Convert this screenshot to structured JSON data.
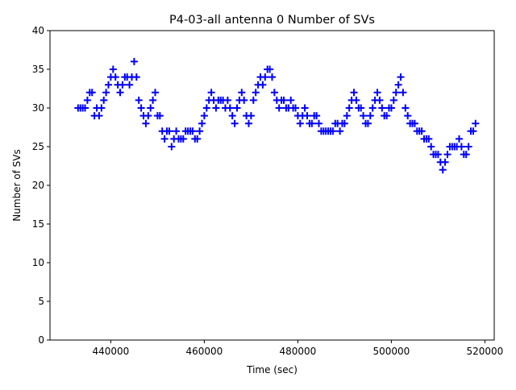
{
  "chart_data": {
    "type": "scatter",
    "title": "P4-03-all antenna 0 Number of SVs",
    "xlabel": "Time (sec)",
    "ylabel": "Number of SVs",
    "xlim": [
      427000,
      522000
    ],
    "ylim": [
      0,
      40
    ],
    "xticks": [
      440000,
      460000,
      480000,
      500000,
      520000
    ],
    "xtick_labels": [
      "440000",
      "460000",
      "480000",
      "500000",
      "520000"
    ],
    "yticks": [
      0,
      5,
      10,
      15,
      20,
      25,
      30,
      35,
      40
    ],
    "ytick_labels": [
      "0",
      "5",
      "10",
      "15",
      "20",
      "25",
      "30",
      "35",
      "40"
    ],
    "grid": false,
    "marker": "+",
    "color": "#0000ff",
    "x": [
      433000,
      433500,
      434000,
      434500,
      435000,
      435500,
      436000,
      436500,
      437000,
      437500,
      438000,
      438500,
      439000,
      439500,
      440000,
      440500,
      441000,
      441500,
      442000,
      442500,
      443000,
      443500,
      444000,
      444500,
      445000,
      445500,
      446000,
      446500,
      447000,
      447500,
      448000,
      448500,
      449000,
      449500,
      450000,
      450500,
      451000,
      451500,
      452000,
      452500,
      453000,
      453500,
      454000,
      454500,
      455000,
      455500,
      456000,
      456500,
      457000,
      457500,
      458000,
      458500,
      459000,
      459500,
      460000,
      460500,
      461000,
      461500,
      462000,
      462500,
      463000,
      463500,
      464000,
      464500,
      465000,
      465500,
      466000,
      466500,
      467000,
      467500,
      468000,
      468500,
      469000,
      469500,
      470000,
      470500,
      471000,
      471500,
      472000,
      472500,
      473000,
      473500,
      474000,
      474500,
      475000,
      475500,
      476000,
      476500,
      477000,
      477500,
      478000,
      478500,
      479000,
      479500,
      480000,
      480500,
      481000,
      481500,
      482000,
      482500,
      483000,
      483500,
      484000,
      484500,
      485000,
      485500,
      486000,
      486500,
      487000,
      487500,
      488000,
      488500,
      489000,
      489500,
      490000,
      490500,
      491000,
      491500,
      492000,
      492500,
      493000,
      493500,
      494000,
      494500,
      495000,
      495500,
      496000,
      496500,
      497000,
      497500,
      498000,
      498500,
      499000,
      499500,
      500000,
      500500,
      501000,
      501500,
      502000,
      502500,
      503000,
      503500,
      504000,
      504500,
      505000,
      505500,
      506000,
      506500,
      507000,
      507500,
      508000,
      508500,
      509000,
      509500,
      510000,
      510500,
      511000,
      511500,
      512000,
      512500,
      513000,
      513500,
      514000,
      514500,
      515000,
      515500,
      516000,
      516500,
      517000,
      517500,
      518000
    ],
    "y": [
      30,
      30,
      30,
      30,
      31,
      32,
      32,
      29,
      30,
      29,
      30,
      31,
      32,
      33,
      34,
      35,
      34,
      33,
      32,
      33,
      34,
      34,
      33,
      34,
      36,
      34,
      31,
      30,
      29,
      28,
      29,
      30,
      31,
      32,
      29,
      29,
      27,
      26,
      27,
      27,
      25,
      26,
      27,
      26,
      26,
      26,
      27,
      27,
      27,
      27,
      26,
      26,
      27,
      28,
      29,
      30,
      31,
      32,
      31,
      30,
      31,
      31,
      31,
      30,
      31,
      30,
      29,
      28,
      30,
      31,
      32,
      31,
      29,
      28,
      29,
      31,
      32,
      33,
      34,
      33,
      34,
      35,
      35,
      34,
      32,
      31,
      30,
      31,
      31,
      30,
      30,
      31,
      30,
      30,
      29,
      28,
      29,
      30,
      29,
      28,
      28,
      29,
      29,
      28,
      27,
      27,
      27,
      27,
      27,
      27,
      28,
      28,
      27,
      28,
      28,
      29,
      30,
      31,
      32,
      31,
      30,
      30,
      29,
      28,
      28,
      29,
      30,
      31,
      32,
      31,
      30,
      29,
      29,
      30,
      30,
      31,
      32,
      33,
      34,
      32,
      30,
      29,
      28,
      28,
      28,
      27,
      27,
      27,
      26,
      26,
      26,
      25,
      24,
      24,
      24,
      23,
      22,
      23,
      24,
      25,
      25,
      25,
      25,
      26,
      25,
      24,
      24,
      25,
      27,
      27,
      28
    ]
  }
}
